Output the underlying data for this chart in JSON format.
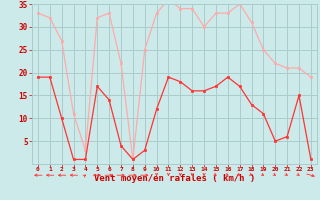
{
  "x": [
    0,
    1,
    2,
    3,
    4,
    5,
    6,
    7,
    8,
    9,
    10,
    11,
    12,
    13,
    14,
    15,
    16,
    17,
    18,
    19,
    20,
    21,
    22,
    23
  ],
  "wind_avg": [
    19,
    19,
    10,
    1,
    1,
    17,
    14,
    4,
    1,
    3,
    12,
    19,
    18,
    16,
    16,
    17,
    19,
    17,
    13,
    11,
    5,
    6,
    15,
    1
  ],
  "wind_gust": [
    33,
    32,
    27,
    11,
    3,
    32,
    33,
    22,
    1,
    25,
    33,
    36,
    34,
    34,
    30,
    33,
    33,
    35,
    31,
    25,
    22,
    21,
    21,
    19
  ],
  "avg_color": "#ff3333",
  "gust_color": "#ffaaaa",
  "bg_color": "#cceaea",
  "grid_color": "#aacccc",
  "xlabel": "Vent moyen/en rafales ( km/h )",
  "xlabel_color": "#cc0000",
  "tick_color": "#cc0000",
  "ylim": [
    0,
    35
  ],
  "yticks": [
    5,
    10,
    15,
    20,
    25,
    30,
    35
  ],
  "xlim": [
    -0.5,
    23.5
  ]
}
